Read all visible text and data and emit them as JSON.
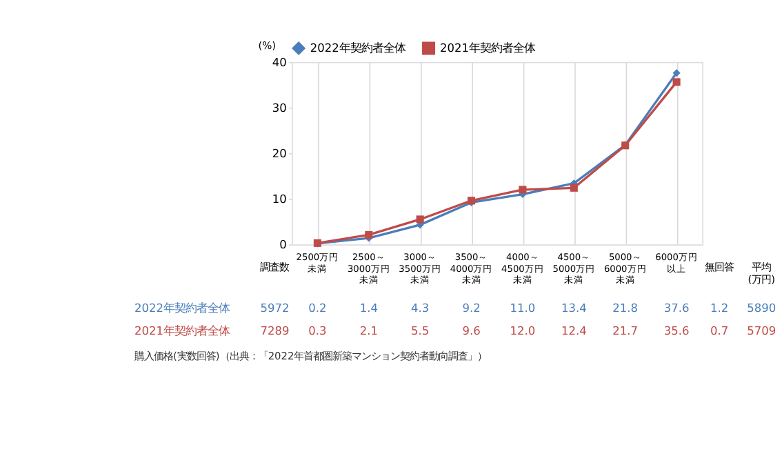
{
  "chart_data": {
    "type": "line",
    "ylabel": "(%)",
    "categories": [
      "2500万円未満",
      "2500～3000万円未満",
      "3000～3500万円未満",
      "3500～4000万円未満",
      "4000～4500万円未満",
      "4500～5000万円未満",
      "5000～6000万円未満",
      "6000万円以上"
    ],
    "series": [
      {
        "name": "2022年契約者全体",
        "color": "#4a7ebb",
        "marker": "diamond",
        "values": [
          0.2,
          1.4,
          4.3,
          9.2,
          11.0,
          13.4,
          21.8,
          37.6
        ],
        "value_labels": [
          "0.2",
          "1.4",
          "4.3",
          "9.2",
          "11.0",
          "13.4",
          "21.8",
          "37.6"
        ]
      },
      {
        "name": "2021年契約者全体",
        "color": "#be4b48",
        "marker": "square",
        "values": [
          0.3,
          2.1,
          5.5,
          9.6,
          12.0,
          12.4,
          21.7,
          35.6
        ],
        "value_labels": [
          "0.3",
          "2.1",
          "5.5",
          "9.6",
          "12.0",
          "12.4",
          "21.7",
          "35.6"
        ]
      }
    ],
    "ylim": [
      0,
      40
    ],
    "yticks": [
      0,
      10,
      20,
      30,
      40
    ],
    "grid": "x",
    "legend": "top",
    "tick_labels": "y",
    "line_style": "solid",
    "annotations": [
      "調査数",
      "5972",
      "7289",
      "無回答",
      "1.2",
      "0.7",
      "平均\n(万円)",
      "5890",
      "5709",
      "購入価格(実数回答)（出典：「2022年首都圏新築マンション契約者動向調査」）"
    ]
  }
}
